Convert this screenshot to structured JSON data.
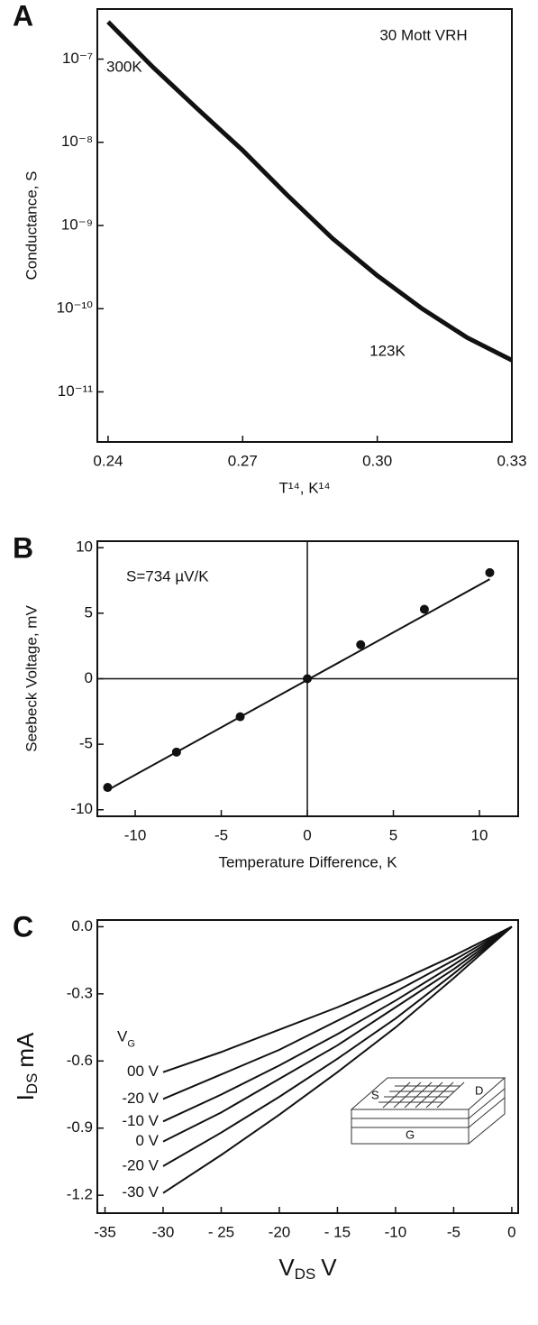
{
  "chart_data": [
    {
      "type": "line",
      "panel_label": "A",
      "xlabel": "T¹⁴, K¹⁴",
      "ylabel": "Conductance, S",
      "annotations": [
        "30 Mott VRH",
        "300K",
        "123K"
      ],
      "ylog": true,
      "x": [
        0.24,
        0.25,
        0.26,
        0.27,
        0.28,
        0.29,
        0.3,
        0.31,
        0.32,
        0.33
      ],
      "series": [
        {
          "color": "#111111",
          "values": [
            2.8e-07,
            8e-08,
            2.5e-08,
            8e-09,
            2.3e-09,
            7e-10,
            2.5e-10,
            1e-10,
            4.5e-11,
            2.4e-11
          ]
        }
      ],
      "xlim": [
        0.2376,
        0.33
      ],
      "xticks": [
        0.24,
        0.27,
        {
          "value": 0.3,
          "label": "0.30"
        },
        0.33
      ],
      "ylim": [
        2.5e-12,
        4e-07
      ],
      "yticks": [
        {
          "value": 1e-07,
          "label": "10⁻⁷"
        },
        {
          "value": 1e-08,
          "label": "10⁻⁸"
        },
        {
          "value": 1e-09,
          "label": "10⁻⁹"
        },
        {
          "value": 1e-10,
          "label": "10⁻¹⁰"
        },
        {
          "value": 1e-11,
          "label": "10⁻¹¹"
        }
      ]
    },
    {
      "type": "scatter",
      "panel_label": "B",
      "xlabel": "Temperature Difference, K",
      "ylabel": "Seebeck Voltage, mV",
      "annotations": [
        "S=734 µV/K"
      ],
      "zero_lines": true,
      "x": [
        -11.6,
        -7.6,
        -3.9,
        0,
        3.1,
        6.8,
        10.6
      ],
      "values": [
        -8.3,
        -5.6,
        -2.9,
        0,
        2.6,
        5.3,
        8.1
      ],
      "color": "#111111",
      "fit": {
        "x": [
          -11.6,
          10.6
        ],
        "y": [
          -8.5,
          7.6
        ]
      },
      "xlim": [
        -12.2,
        12.25
      ],
      "xticks": [
        -10,
        -5,
        0,
        5,
        10
      ],
      "ylim": [
        -10.5,
        10.5
      ],
      "yticks": [
        -10,
        -5,
        0,
        5,
        10
      ]
    },
    {
      "type": "line",
      "panel_label": "C",
      "xlabel": [
        "V",
        "DS",
        "V"
      ],
      "ylabel": [
        "I",
        "DS",
        "mA"
      ],
      "legend_title": [
        "V",
        "G"
      ],
      "inset_labels": [
        "S",
        "D",
        "G"
      ],
      "x": [
        -30,
        -25,
        -20,
        -15,
        -10,
        -5,
        0
      ],
      "series": [
        {
          "name": "00 V",
          "color": "#111111",
          "values": [
            -0.65,
            -0.56,
            -0.46,
            -0.36,
            -0.25,
            -0.13,
            0
          ]
        },
        {
          "name": "-20 V",
          "color": "#111111",
          "values": [
            -0.77,
            -0.66,
            -0.55,
            -0.42,
            -0.29,
            -0.15,
            0
          ]
        },
        {
          "name": "-10 V",
          "color": "#111111",
          "values": [
            -0.87,
            -0.75,
            -0.62,
            -0.48,
            -0.33,
            -0.17,
            0
          ]
        },
        {
          "name": "0 V",
          "color": "#111111",
          "values": [
            -0.96,
            -0.83,
            -0.68,
            -0.53,
            -0.36,
            -0.19,
            0
          ]
        },
        {
          "name": "-20 V",
          "color": "#111111",
          "values": [
            -1.07,
            -0.92,
            -0.76,
            -0.59,
            -0.41,
            -0.21,
            0
          ]
        },
        {
          "name": "-30 V",
          "color": "#111111",
          "values": [
            -1.19,
            -1.02,
            -0.84,
            -0.65,
            -0.45,
            -0.23,
            0
          ]
        }
      ],
      "xlim": [
        -35.66,
        0.55
      ],
      "xticks": [
        -35,
        -30,
        {
          "value": -25,
          "label": "- 25"
        },
        -20,
        {
          "value": -15,
          "label": "- 15"
        },
        -10,
        -5,
        0
      ],
      "ylim": [
        -1.28,
        0.03
      ],
      "yticks": [
        {
          "value": 0,
          "label": "0.0"
        },
        -0.3,
        -0.6,
        -0.9,
        -1.2
      ]
    }
  ]
}
